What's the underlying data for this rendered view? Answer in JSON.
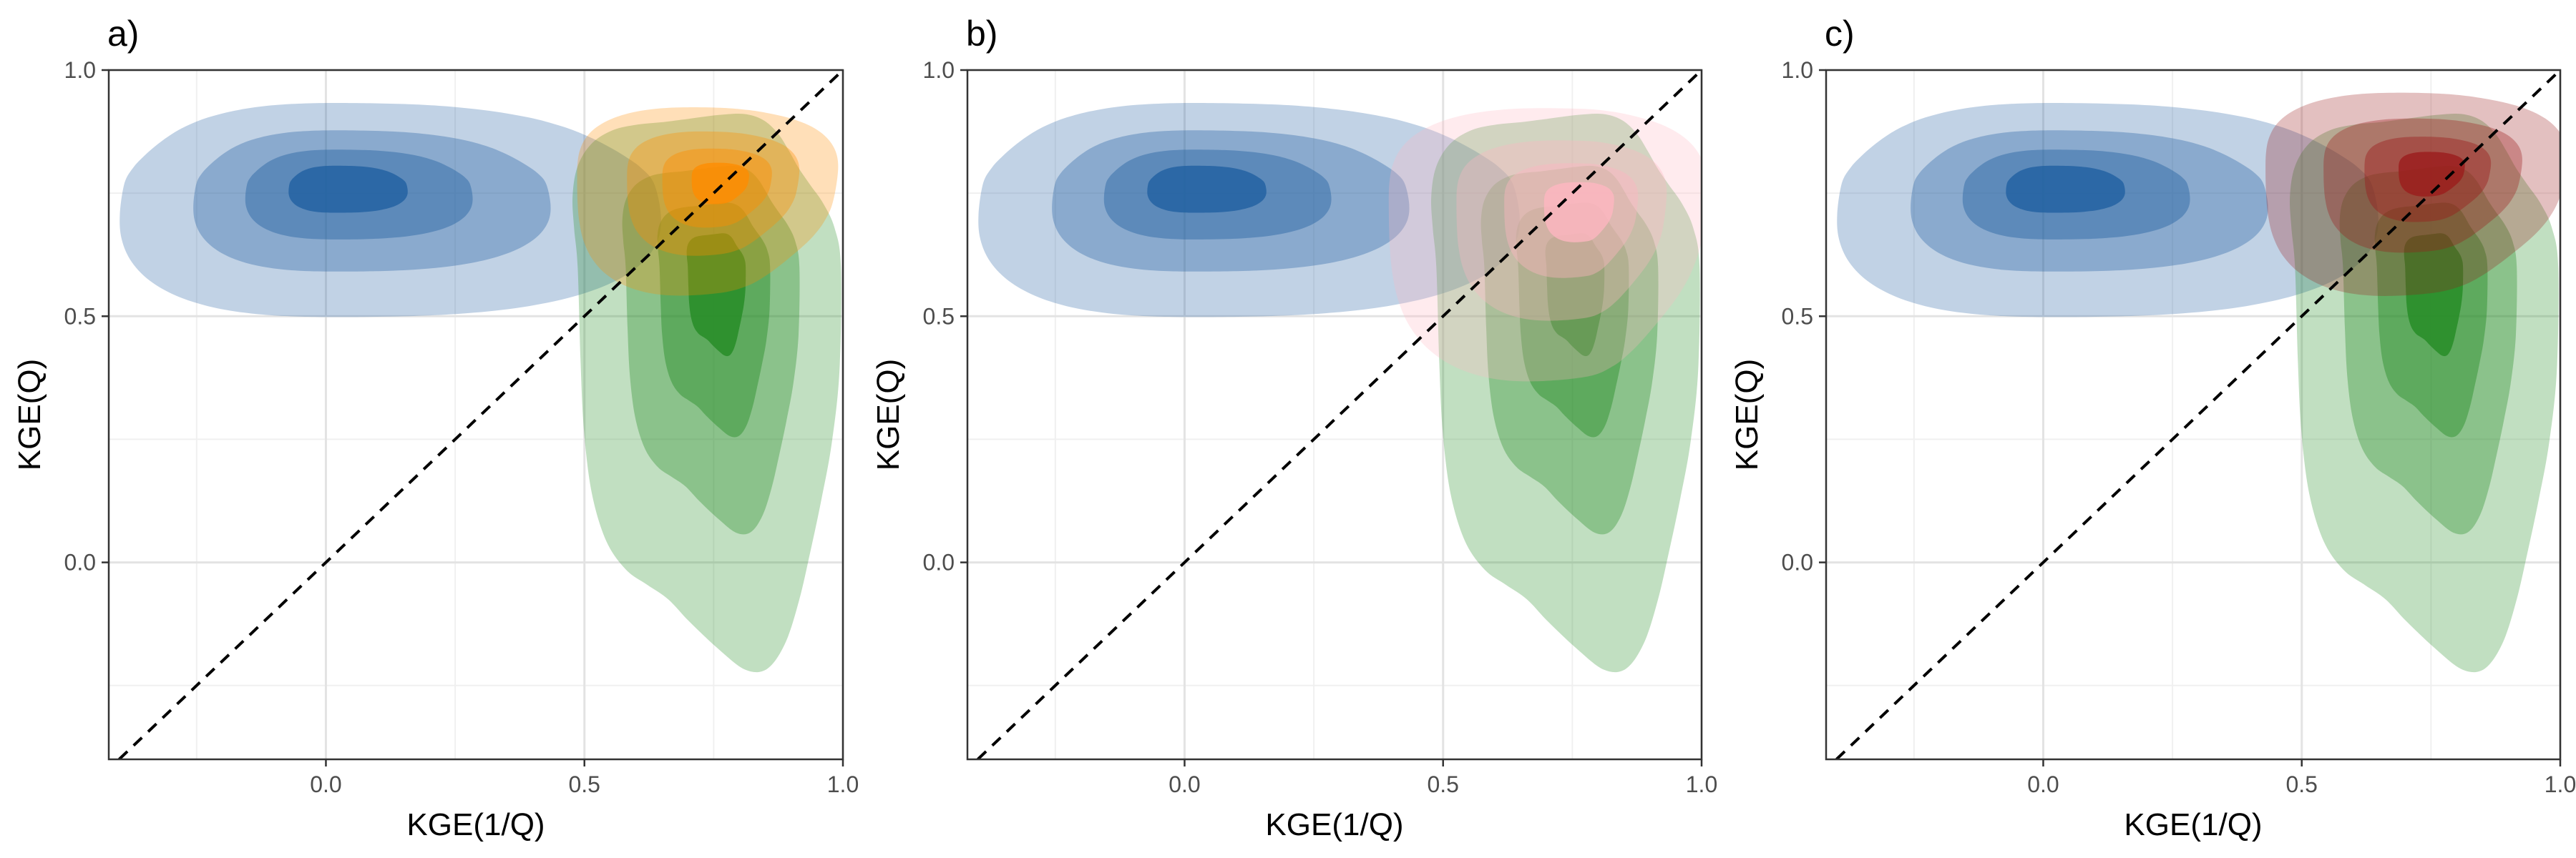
{
  "chart_data": [
    {
      "type": "density-contour",
      "panel_label": "a)",
      "xlabel": "KGE(1/Q)",
      "ylabel": "KGE(Q)",
      "xlim": [
        -0.42,
        1.0
      ],
      "ylim": [
        -0.4,
        1.0
      ],
      "x_ticks": [
        0.0,
        0.5,
        1.0
      ],
      "x_tick_labels": [
        "0.0",
        "0.5",
        "1.0"
      ],
      "y_ticks": [
        0.0,
        0.5,
        1.0
      ],
      "y_tick_labels": [
        "0.0",
        "0.5",
        "1.0"
      ],
      "grid": true,
      "reference_line": "1:1 dashed",
      "series": [
        {
          "color": "#1f5fa0",
          "density_peak": {
            "x": 0.02,
            "y": 0.77
          },
          "extent": {
            "x": [
              -0.42,
              0.68
            ],
            "y": [
              0.49,
              0.92
            ]
          }
        },
        {
          "color": "#228b22",
          "density_peak": {
            "x": 0.76,
            "y": 0.6
          },
          "extent": {
            "x": [
              0.48,
              0.98
            ],
            "y": [
              -0.23,
              0.93
            ]
          }
        },
        {
          "color": "#ff8c00",
          "density_peak": {
            "x": 0.77,
            "y": 0.78
          },
          "extent": {
            "x": [
              0.46,
              0.98
            ],
            "y": [
              0.55,
              0.93
            ]
          }
        }
      ]
    },
    {
      "type": "density-contour",
      "panel_label": "b)",
      "xlabel": "KGE(1/Q)",
      "ylabel": "KGE(Q)",
      "xlim": [
        -0.42,
        1.0
      ],
      "ylim": [
        -0.4,
        1.0
      ],
      "x_ticks": [
        0.0,
        0.5,
        1.0
      ],
      "x_tick_labels": [
        "0.0",
        "0.5",
        "1.0"
      ],
      "y_ticks": [
        0.0,
        0.5,
        1.0
      ],
      "y_tick_labels": [
        "0.0",
        "0.5",
        "1.0"
      ],
      "grid": true,
      "reference_line": "1:1 dashed",
      "series": [
        {
          "color": "#1f5fa0",
          "density_peak": {
            "x": 0.02,
            "y": 0.77
          },
          "extent": {
            "x": [
              -0.42,
              0.68
            ],
            "y": [
              0.49,
              0.92
            ]
          }
        },
        {
          "color": "#228b22",
          "density_peak": {
            "x": 0.76,
            "y": 0.6
          },
          "extent": {
            "x": [
              0.48,
              0.98
            ],
            "y": [
              -0.23,
              0.93
            ]
          }
        },
        {
          "color": "#ffb6c1",
          "density_peak": {
            "x": 0.78,
            "y": 0.73
          },
          "extent": {
            "x": [
              0.36,
              1.0
            ],
            "y": [
              0.38,
              0.93
            ]
          }
        }
      ]
    },
    {
      "type": "density-contour",
      "panel_label": "c)",
      "xlabel": "KGE(1/Q)",
      "ylabel": "KGE(Q)",
      "xlim": [
        -0.42,
        1.0
      ],
      "ylim": [
        -0.4,
        1.0
      ],
      "x_ticks": [
        0.0,
        0.5,
        1.0
      ],
      "x_tick_labels": [
        "0.0",
        "0.5",
        "1.0"
      ],
      "y_ticks": [
        0.0,
        0.5,
        1.0
      ],
      "y_tick_labels": [
        "0.0",
        "0.5",
        "1.0"
      ],
      "grid": true,
      "reference_line": "1:1 dashed",
      "series": [
        {
          "color": "#1f5fa0",
          "density_peak": {
            "x": 0.02,
            "y": 0.77
          },
          "extent": {
            "x": [
              -0.42,
              0.68
            ],
            "y": [
              0.49,
              0.92
            ]
          }
        },
        {
          "color": "#228b22",
          "density_peak": {
            "x": 0.76,
            "y": 0.6
          },
          "extent": {
            "x": [
              0.48,
              0.98
            ],
            "y": [
              -0.23,
              0.93
            ]
          }
        },
        {
          "color": "#9b1b1b",
          "density_peak": {
            "x": 0.76,
            "y": 0.8
          },
          "extent": {
            "x": [
              0.4,
              1.0
            ],
            "y": [
              0.55,
              0.96
            ]
          }
        }
      ]
    }
  ]
}
